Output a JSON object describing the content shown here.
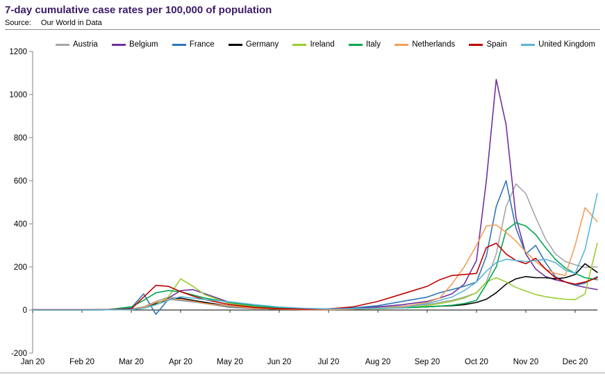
{
  "header": {
    "title": "7-day cumulative case rates per 100,000 of population",
    "title_color": "#3b1a68",
    "source_label": "Source:",
    "source_value": "Our World in Data"
  },
  "chart_data": {
    "type": "line",
    "title": "7-day cumulative case rates per 100,000 of population",
    "xlabel": "",
    "ylabel": "",
    "grid": false,
    "legend_position": "top",
    "ylim": [
      -200,
      1200
    ],
    "y_ticks": [
      -200,
      0,
      200,
      400,
      600,
      800,
      1000,
      1200
    ],
    "x_tick_labels": [
      "Jan 20",
      "Feb 20",
      "Mar 20",
      "Apr 20",
      "May 20",
      "Jun 20",
      "Jul 20",
      "Aug 20",
      "Sep 20",
      "Oct 20",
      "Nov 20",
      "Dec 20"
    ],
    "x_tick_positions": [
      0,
      1,
      2,
      3,
      4,
      5,
      6,
      7,
      8,
      9,
      10,
      11
    ],
    "x_months": [
      0,
      0.5,
      1,
      1.5,
      2,
      2.25,
      2.5,
      2.75,
      3,
      3.25,
      3.5,
      4,
      4.5,
      5,
      5.5,
      6,
      6.5,
      7,
      7.5,
      8,
      8.25,
      8.5,
      8.75,
      9,
      9.2,
      9.4,
      9.6,
      9.8,
      10,
      10.2,
      10.4,
      10.6,
      10.8,
      11,
      11.2,
      11.45
    ],
    "series": [
      {
        "name": "Austria",
        "color": "#a6a6a6",
        "values": [
          1,
          1,
          1,
          2,
          5,
          15,
          40,
          60,
          55,
          45,
          30,
          12,
          6,
          4,
          4,
          6,
          10,
          14,
          18,
          25,
          35,
          45,
          60,
          80,
          130,
          260,
          480,
          585,
          540,
          430,
          330,
          260,
          225,
          210,
          198,
          200
        ]
      },
      {
        "name": "Belgium",
        "color": "#7030a0",
        "values": [
          1,
          1,
          1,
          2,
          4,
          10,
          25,
          55,
          90,
          95,
          75,
          35,
          15,
          8,
          5,
          5,
          8,
          15,
          25,
          40,
          55,
          75,
          120,
          230,
          600,
          1070,
          860,
          430,
          260,
          190,
          155,
          140,
          130,
          115,
          105,
          95
        ]
      },
      {
        "name": "France",
        "color": "#2e75b6",
        "values": [
          1,
          1,
          1,
          2,
          10,
          75,
          -20,
          50,
          45,
          38,
          30,
          15,
          8,
          5,
          4,
          5,
          10,
          20,
          40,
          60,
          80,
          95,
          110,
          130,
          250,
          480,
          600,
          380,
          260,
          300,
          220,
          155,
          130,
          115,
          125,
          155
        ]
      },
      {
        "name": "Germany",
        "color": "#000000",
        "values": [
          0,
          0,
          0,
          1,
          3,
          12,
          30,
          50,
          55,
          45,
          35,
          18,
          8,
          4,
          3,
          3,
          4,
          8,
          12,
          15,
          18,
          20,
          25,
          35,
          50,
          80,
          120,
          145,
          155,
          150,
          150,
          145,
          150,
          165,
          215,
          175
        ]
      },
      {
        "name": "Ireland",
        "color": "#9acd32",
        "values": [
          0,
          0,
          0,
          1,
          2,
          8,
          25,
          60,
          145,
          110,
          70,
          30,
          15,
          8,
          4,
          3,
          4,
          6,
          10,
          20,
          30,
          40,
          55,
          80,
          130,
          150,
          130,
          105,
          88,
          72,
          62,
          55,
          50,
          48,
          75,
          310
        ]
      },
      {
        "name": "Italy",
        "color": "#00a650",
        "values": [
          0,
          0,
          0,
          1,
          15,
          45,
          80,
          90,
          85,
          70,
          55,
          35,
          20,
          10,
          6,
          4,
          5,
          8,
          10,
          15,
          18,
          22,
          30,
          45,
          120,
          200,
          370,
          405,
          390,
          350,
          290,
          235,
          195,
          170,
          150,
          140
        ]
      },
      {
        "name": "Netherlands",
        "color": "#f59d56",
        "values": [
          0,
          0,
          0,
          1,
          3,
          12,
          35,
          50,
          48,
          40,
          30,
          18,
          8,
          4,
          2,
          2,
          4,
          8,
          15,
          35,
          55,
          120,
          200,
          300,
          390,
          395,
          360,
          320,
          270,
          225,
          190,
          170,
          160,
          300,
          475,
          410
        ]
      },
      {
        "name": "Spain",
        "color": "#c00000",
        "values": [
          1,
          1,
          1,
          2,
          5,
          60,
          115,
          110,
          85,
          65,
          48,
          25,
          12,
          6,
          4,
          5,
          15,
          40,
          75,
          110,
          140,
          160,
          165,
          170,
          290,
          310,
          260,
          230,
          215,
          240,
          190,
          150,
          130,
          120,
          130,
          150
        ]
      },
      {
        "name": "United Kingdom",
        "color": "#5ab4d6",
        "values": [
          0,
          0,
          0,
          1,
          2,
          8,
          25,
          45,
          62,
          55,
          48,
          38,
          25,
          14,
          8,
          5,
          6,
          8,
          10,
          30,
          45,
          60,
          90,
          130,
          180,
          220,
          235,
          230,
          225,
          230,
          235,
          220,
          185,
          170,
          280,
          540
        ]
      }
    ]
  }
}
